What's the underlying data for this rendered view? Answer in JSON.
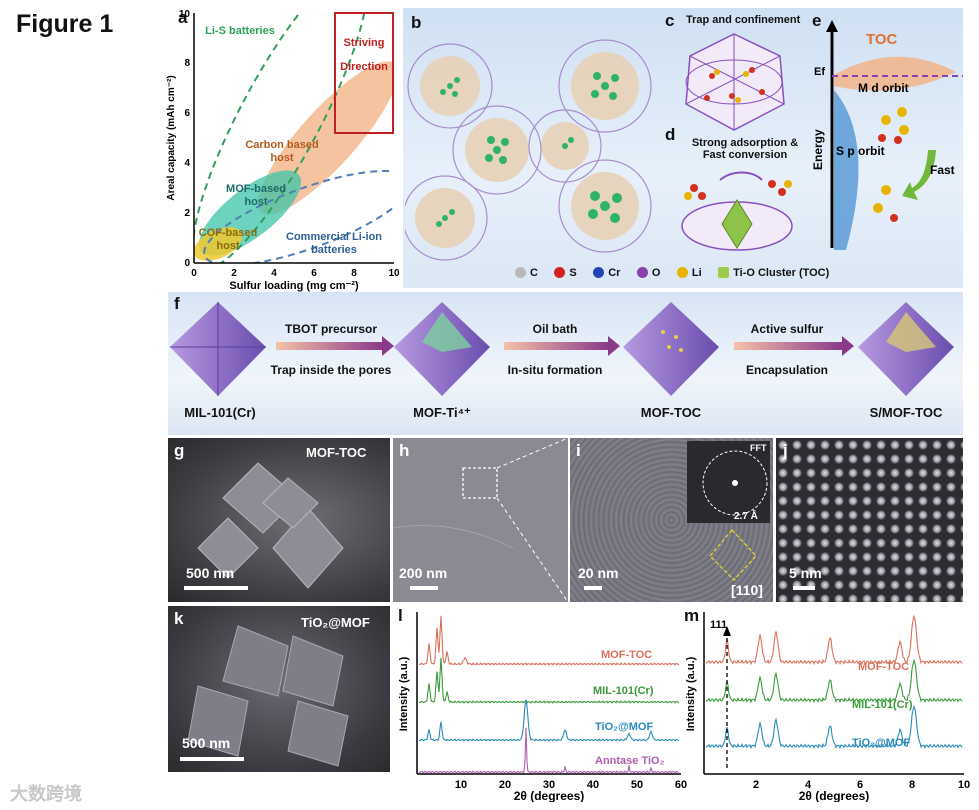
{
  "figure_title": "Figure 1",
  "panels": {
    "a": {
      "label": "a"
    },
    "b": {
      "label": "b"
    },
    "c": {
      "label": "c",
      "title": "Trap and confinement"
    },
    "d": {
      "label": "d",
      "title_line1": "Strong adsorption &",
      "title_line2": "Fast conversion"
    },
    "e": {
      "label": "e",
      "toc": "TOC",
      "ef": "Ef",
      "m_orbit": "M d orbit",
      "s_orbit": "S p orbit",
      "energy": "Energy",
      "fast": "Fast"
    },
    "f": {
      "label": "f"
    },
    "g": {
      "label": "g",
      "name": "MOF-TOC",
      "scale": "500 nm"
    },
    "h": {
      "label": "h",
      "scale": "200 nm"
    },
    "i": {
      "label": "i",
      "scale": "20 nm",
      "fft": "FFT",
      "dspacing": "2.7 Å",
      "zone": "[110]"
    },
    "j": {
      "label": "j",
      "scale": "5 nm"
    },
    "k": {
      "label": "k",
      "name": "TiO₂@MOF",
      "scale": "500 nm"
    },
    "l": {
      "label": "l"
    },
    "m": {
      "label": "m"
    }
  },
  "legend_b": [
    {
      "symbol": "C",
      "color": "#b8b8b8"
    },
    {
      "symbol": "S",
      "color": "#d32020"
    },
    {
      "symbol": "Cr",
      "color": "#2444b5"
    },
    {
      "symbol": "O",
      "color": "#8a3fb0"
    },
    {
      "symbol": "Li",
      "color": "#e8b400"
    },
    {
      "symbol": "Ti-O Cluster (TOC)",
      "color": "#9ccc4a"
    }
  ],
  "scheme_f": {
    "steps": [
      {
        "name": "MIL-101(Cr)"
      },
      {
        "name": "MOF-Ti⁴⁺"
      },
      {
        "name": "MOF-TOC"
      },
      {
        "name": "S/MOF-TOC"
      }
    ],
    "arrows": [
      {
        "top": "TBOT precursor",
        "bottom": "Trap inside the pores"
      },
      {
        "top": "Oil bath",
        "bottom": "In-situ formation"
      },
      {
        "top": "Active sulfur",
        "bottom": "Encapsulation"
      }
    ]
  },
  "chart_data": [
    {
      "panel": "a",
      "type": "scatter",
      "xlabel": "Sulfur loading (mg cm⁻²)",
      "ylabel": "Areal capacity (mAh cm⁻²)",
      "xlim": [
        0,
        10
      ],
      "ylim": [
        0,
        10
      ],
      "xticks": [
        0,
        2,
        4,
        6,
        8,
        10
      ],
      "yticks": [
        0,
        2,
        4,
        6,
        8,
        10
      ],
      "regions": [
        {
          "name": "Li-S batteries",
          "color": "#2ea05a"
        },
        {
          "name": "Carbon based host",
          "color": "#f0a070"
        },
        {
          "name": "MOF-based host",
          "color": "#40c0a0"
        },
        {
          "name": "COF-based host",
          "color": "#e8c030"
        },
        {
          "name": "Commercial Li-ion batteries",
          "color": "#4f7fb5"
        },
        {
          "name": "Striving Direction",
          "color": "#c02020"
        }
      ]
    },
    {
      "panel": "l",
      "type": "line",
      "xlabel": "2θ (degrees)",
      "ylabel": "Intensity (a.u.)",
      "xlim": [
        0,
        60
      ],
      "xticks": [
        10,
        20,
        30,
        40,
        50,
        60
      ],
      "series": [
        {
          "name": "MOF-TOC",
          "color": "#d9705a"
        },
        {
          "name": "MIL-101(Cr)",
          "color": "#3a9a3a"
        },
        {
          "name": "TiO₂@MOF",
          "color": "#2a8ab8"
        },
        {
          "name": "Anntase TiO₂",
          "color": "#b060b0"
        }
      ]
    },
    {
      "panel": "m",
      "type": "line",
      "xlabel": "2θ (degrees)",
      "ylabel": "Intensity (a.u.)",
      "xlim": [
        0,
        10
      ],
      "xticks": [
        2,
        4,
        6,
        8,
        10
      ],
      "annotation": "111",
      "series": [
        {
          "name": "MOF-TOC",
          "color": "#d9705a"
        },
        {
          "name": "MIL-101(Cr)",
          "color": "#3a9a3a"
        },
        {
          "name": "TiO₂@MOF",
          "color": "#2a8ab8"
        }
      ]
    }
  ],
  "watermark": "大数跨境"
}
